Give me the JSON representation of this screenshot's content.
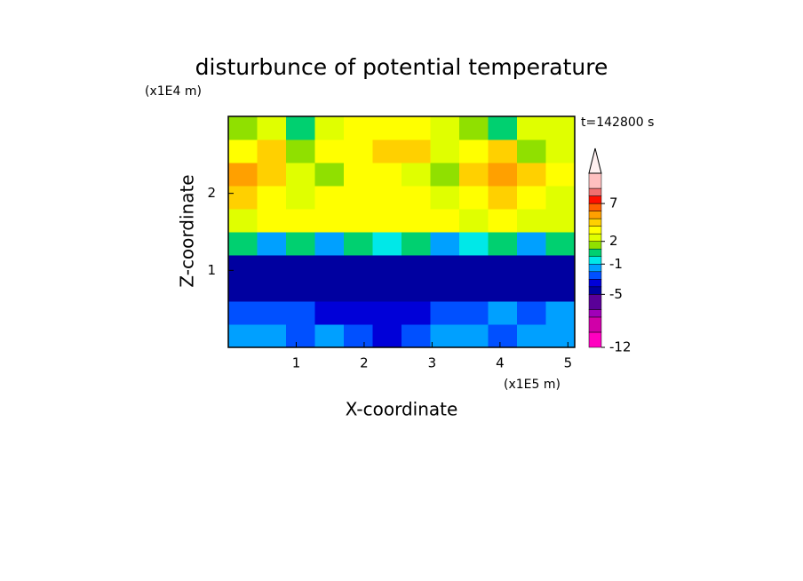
{
  "chart_data": {
    "type": "contour",
    "title": "disturbunce of potential temperature",
    "x_label": "X-coordinate",
    "y_label": "Z-coordinate",
    "x_unit": "(x1E5 m)",
    "y_unit": "(x1E4 m)",
    "annotation": "t=142800 s",
    "x_bins": [
      0,
      0.425,
      0.85,
      1.275,
      1.7,
      2.125,
      2.55,
      2.975,
      3.4,
      3.825,
      4.25,
      4.675,
      5.1
    ],
    "y_bins": [
      0,
      0.3,
      0.6,
      0.9,
      1.2,
      1.5,
      1.8,
      2.1,
      2.4,
      2.7,
      3.0
    ],
    "values": [
      [
        -1.5,
        -2,
        -2.5,
        -1.5,
        -3,
        -4,
        -3,
        -2,
        -2,
        -2.5,
        -2,
        -1.5
      ],
      [
        -2.5,
        -3,
        -2.5,
        -3.5,
        -4,
        -3.5,
        -4,
        -3,
        -2.5,
        -2,
        -2.5,
        -2
      ],
      [
        -4.5,
        -4.5,
        -4.5,
        -4.5,
        -4.5,
        -4.5,
        -4.5,
        -4.5,
        -4.5,
        -4.5,
        -4.5,
        -4.5
      ],
      [
        -4.5,
        -4.5,
        -4.5,
        -4.5,
        -4.5,
        -4.5,
        -4.5,
        -4.5,
        -4.5,
        -4.5,
        -4.5,
        -4.5
      ],
      [
        0.5,
        -1.5,
        0.5,
        -1.5,
        0.5,
        -0.5,
        0.5,
        -1.5,
        -0.5,
        0.5,
        -1.5,
        0.5
      ],
      [
        2.5,
        3.5,
        3.5,
        3.5,
        3.5,
        3.5,
        3.5,
        3.5,
        2.5,
        3.5,
        2.5,
        2.5
      ],
      [
        4.5,
        3.5,
        2.5,
        3.5,
        3.5,
        3.5,
        3.5,
        2.5,
        3.5,
        4.5,
        3.5,
        2.5
      ],
      [
        5.5,
        4.5,
        2.5,
        1.5,
        3.5,
        3.5,
        2.5,
        1.5,
        4.5,
        5.5,
        4.5,
        3.5
      ],
      [
        3.5,
        4.5,
        1.5,
        3.5,
        3.5,
        4.5,
        4.5,
        2.5,
        3.5,
        4.5,
        1.5,
        2.5
      ],
      [
        1.5,
        2.5,
        0.5,
        2.5,
        3.5,
        3.5,
        3.5,
        2.5,
        1.5,
        0.5,
        2.5,
        2.5
      ]
    ],
    "xlim": [
      0,
      5.1
    ],
    "ylim": [
      0,
      3.0
    ],
    "xticks": [
      1,
      2,
      3,
      4,
      5
    ],
    "yticks": [
      1,
      2
    ],
    "colorbar": {
      "levels": [
        -12,
        -10,
        -8,
        -7,
        -5,
        -4,
        -3,
        -2,
        -1,
        0,
        1,
        2,
        3,
        4,
        5,
        6,
        7,
        8,
        9,
        11
      ],
      "colors": [
        "#ff00c0",
        "#d000a8",
        "#a000b8",
        "#5a0098",
        "#0000a0",
        "#0000d8",
        "#0050ff",
        "#00a0ff",
        "#00e8e8",
        "#00d070",
        "#90e000",
        "#e0ff00",
        "#ffff00",
        "#ffd000",
        "#ffa000",
        "#ff6000",
        "#ff1000",
        "#f07070",
        "#ffc0c0"
      ],
      "extend_color": "#fff0f0",
      "lim": [
        -12,
        11
      ],
      "ticks": [
        -12,
        -5,
        -1,
        2,
        7
      ]
    }
  }
}
